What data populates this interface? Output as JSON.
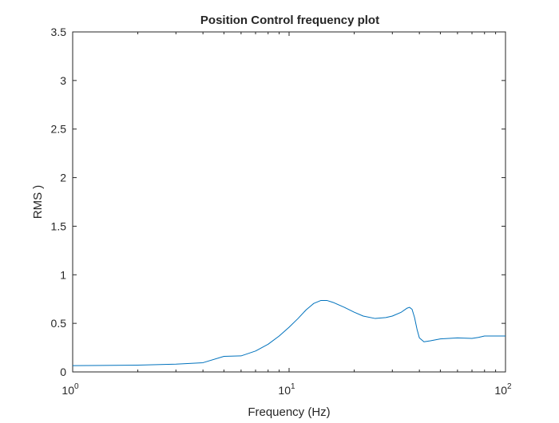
{
  "chart_data": {
    "type": "line",
    "title": "Position Control frequency plot",
    "xlabel": "Frequency (Hz)",
    "ylabel": "RMS )",
    "xscale": "log",
    "xlim": [
      1,
      100
    ],
    "ylim": [
      0,
      3.5
    ],
    "grid": false,
    "box": true,
    "line_color": "#0072BD",
    "x_ticks": [
      {
        "value": 1,
        "base": "10",
        "exp": "0"
      },
      {
        "value": 10,
        "base": "10",
        "exp": "1"
      },
      {
        "value": 100,
        "base": "10",
        "exp": "2"
      }
    ],
    "y_ticks": [
      {
        "value": 0,
        "label": "0"
      },
      {
        "value": 0.5,
        "label": "0.5"
      },
      {
        "value": 1,
        "label": "1"
      },
      {
        "value": 1.5,
        "label": "1.5"
      },
      {
        "value": 2,
        "label": "2"
      },
      {
        "value": 2.5,
        "label": "2.5"
      },
      {
        "value": 3,
        "label": "3"
      },
      {
        "value": 3.5,
        "label": "3.5"
      }
    ],
    "series": [
      {
        "x": [
          1,
          2,
          3,
          4,
          5,
          6,
          7,
          8,
          9,
          10,
          11,
          12,
          13,
          14,
          15,
          16,
          18,
          20,
          22,
          25,
          28,
          30,
          33,
          35,
          36,
          37,
          38,
          39,
          40,
          42,
          45,
          50,
          60,
          70,
          75,
          80,
          90,
          100
        ],
        "y": [
          0.065,
          0.07,
          0.08,
          0.095,
          0.16,
          0.165,
          0.215,
          0.285,
          0.37,
          0.46,
          0.55,
          0.64,
          0.705,
          0.735,
          0.735,
          0.715,
          0.665,
          0.615,
          0.575,
          0.55,
          0.56,
          0.575,
          0.615,
          0.655,
          0.665,
          0.645,
          0.56,
          0.44,
          0.35,
          0.31,
          0.32,
          0.34,
          0.35,
          0.345,
          0.355,
          0.37,
          0.37,
          0.37
        ]
      }
    ]
  }
}
